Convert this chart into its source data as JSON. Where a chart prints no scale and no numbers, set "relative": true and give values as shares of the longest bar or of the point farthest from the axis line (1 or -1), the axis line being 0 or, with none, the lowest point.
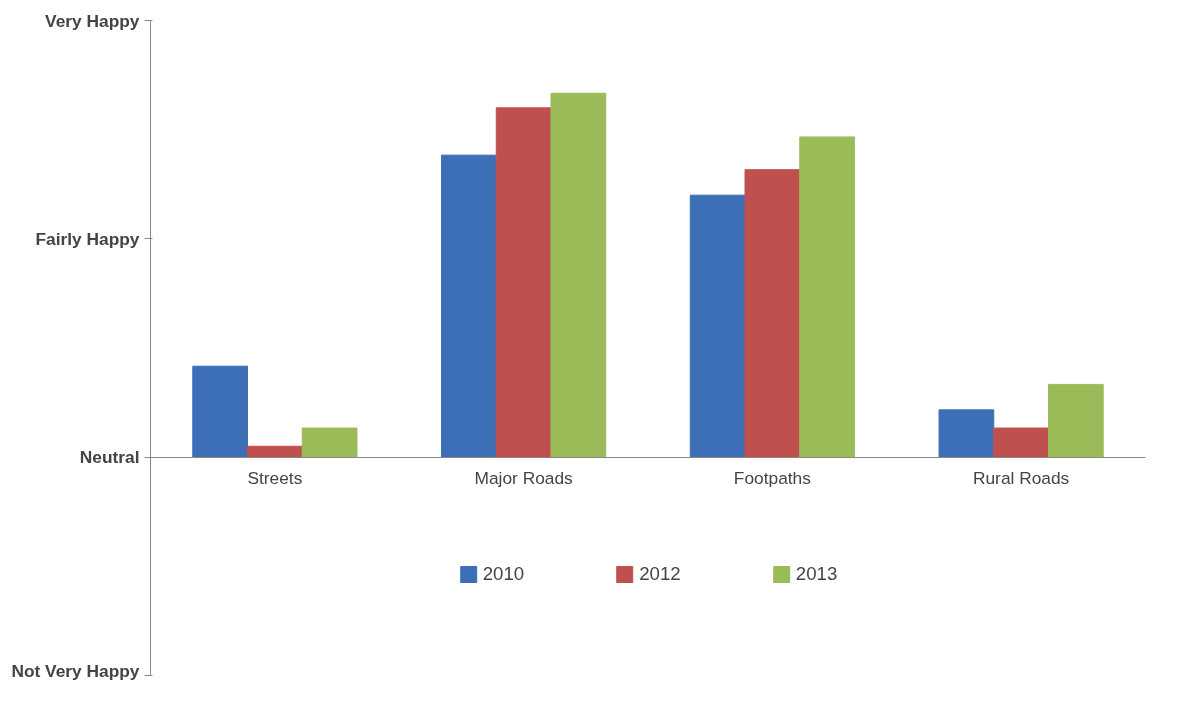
{
  "chart_data": {
    "type": "bar",
    "relative": true,
    "categories": [
      "Streets",
      "Major Roads",
      "Footpaths",
      "Rural Roads"
    ],
    "series": [
      {
        "name": "2010",
        "color": "#3d6fb6",
        "values": [
          0.25,
          0.83,
          0.72,
          0.13
        ]
      },
      {
        "name": "2012",
        "color": "#c0504d",
        "values": [
          0.03,
          0.96,
          0.79,
          0.08
        ]
      },
      {
        "name": "2013",
        "color": "#9bbb59",
        "values": [
          0.08,
          1,
          0.88,
          0.2
        ]
      }
    ],
    "annotations": [
      "Very Happy",
      "Fairly Happy",
      "Neutral",
      "Not Very Happy"
    ],
    "grid": false,
    "legend": "bottom"
  }
}
